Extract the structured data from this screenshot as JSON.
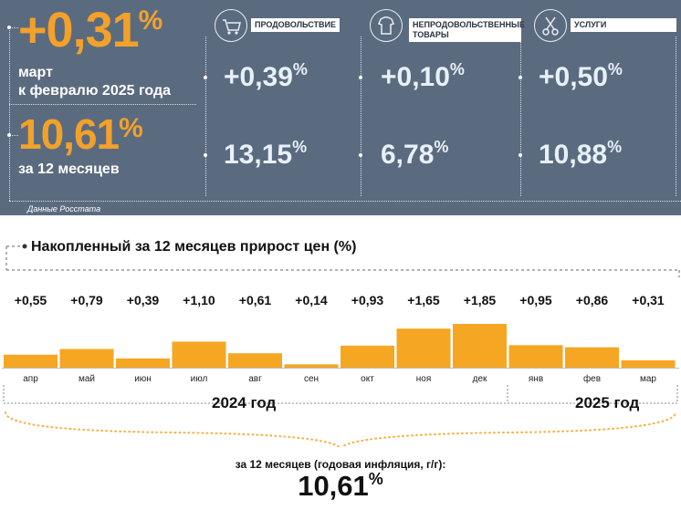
{
  "header": {
    "monthly_change": "+0,31",
    "monthly_change_unit": "%",
    "monthly_period": "март\nк февралю 2025 года",
    "annual_change": "10,61",
    "annual_change_unit": "%",
    "annual_period": "за 12 месяцев",
    "source": "Данные Росстата"
  },
  "categories": [
    {
      "label": "ПРОДОВОЛЬСТВИЕ",
      "icon": "shopping-cart-icon",
      "month": "+0,39",
      "year": "13,15",
      "unit": "%"
    },
    {
      "label": "НЕПРОДОВОЛЬСТВЕННЫЕ ТОВАРЫ",
      "icon": "clothes-icon",
      "month": "+0,10",
      "year": "6,78",
      "unit": "%"
    },
    {
      "label": "УСЛУГИ",
      "icon": "scissors-icon",
      "month": "+0,50",
      "year": "10,88",
      "unit": "%"
    }
  ],
  "chart_data": {
    "type": "bar",
    "title": "Накопленный за 12 месяцев прирост цен (%)",
    "categories": [
      "апр",
      "май",
      "июн",
      "июл",
      "авг",
      "сен",
      "окт",
      "ноя",
      "дек",
      "янв",
      "фев",
      "мар"
    ],
    "values": [
      0.55,
      0.79,
      0.39,
      1.1,
      0.61,
      0.14,
      0.93,
      1.65,
      1.85,
      0.95,
      0.86,
      0.31
    ],
    "value_labels": [
      "+0,55",
      "+0,79",
      "+0,39",
      "+1,10",
      "+0,61",
      "+0,14",
      "+0,93",
      "+1,65",
      "+1,85",
      "+0,95",
      "+0,86",
      "+0,31"
    ],
    "bar_color": "#f5a623",
    "grid": false,
    "year_groups": [
      "2024 год",
      "2025 год"
    ],
    "annual_label": "за 12 месяцев (годовая инфляция, г/г):",
    "annual_value": "10,61",
    "annual_unit": "%"
  }
}
